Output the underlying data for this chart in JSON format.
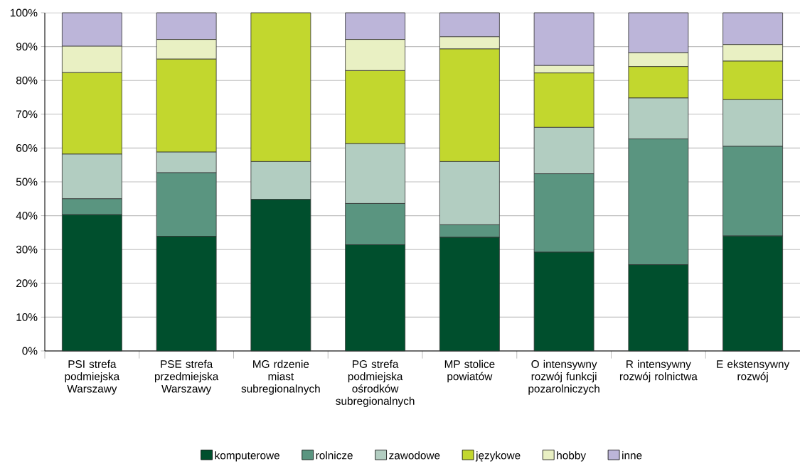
{
  "chart_data": {
    "type": "bar",
    "stacked": true,
    "categories": [
      "PSI strefa podmiejska Warszawy",
      "PSE strefa przedmiejska Warszawy",
      "MG rdzenie miast subregionalnych",
      "PG strefa podmiejska ośrodków subregionalnych",
      "MP stolice powiatów",
      "O intensywny rozwój funkcji pozarolniczych",
      "R intensywny rozwój rolnictwa",
      "E ekstensywny rozwój"
    ],
    "series": [
      {
        "name": "komputerowe",
        "color": "#004f2d",
        "values": [
          40.3,
          33.9,
          44.8,
          31.4,
          33.6,
          29.2,
          25.5,
          34.0
        ]
      },
      {
        "name": "rolnicze",
        "color": "#5a9580",
        "values": [
          4.7,
          18.8,
          0,
          12.2,
          3.7,
          23.2,
          37.2,
          26.5
        ]
      },
      {
        "name": "zawodowe",
        "color": "#b2cdc1",
        "values": [
          13.2,
          6.1,
          11.2,
          17.7,
          18.7,
          13.7,
          12.1,
          13.8
        ]
      },
      {
        "name": "językowe",
        "color": "#c2d72e",
        "values": [
          24.1,
          27.5,
          44.0,
          21.6,
          33.3,
          16.1,
          9.3,
          11.4
        ]
      },
      {
        "name": "hobby",
        "color": "#e9f0c3",
        "values": [
          7.8,
          5.8,
          0,
          9.2,
          3.6,
          2.2,
          4.1,
          4.9
        ]
      },
      {
        "name": "inne",
        "color": "#bcb5d9",
        "values": [
          9.9,
          7.9,
          0,
          7.9,
          7.1,
          15.6,
          11.8,
          9.4
        ]
      }
    ],
    "ylim": [
      0,
      100
    ],
    "yticks": [
      {
        "value": 0,
        "label": "0%"
      },
      {
        "value": 10,
        "label": "10%"
      },
      {
        "value": 20,
        "label": "20%"
      },
      {
        "value": 30,
        "label": "30%"
      },
      {
        "value": 40,
        "label": "40%"
      },
      {
        "value": 50,
        "label": "50%"
      },
      {
        "value": 60,
        "label": "60%"
      },
      {
        "value": 70,
        "label": "70%"
      },
      {
        "value": 80,
        "label": "80%"
      },
      {
        "value": 90,
        "label": "90%"
      },
      {
        "value": 100,
        "label": "100%"
      }
    ],
    "grid": "y",
    "legend": "bottom"
  }
}
